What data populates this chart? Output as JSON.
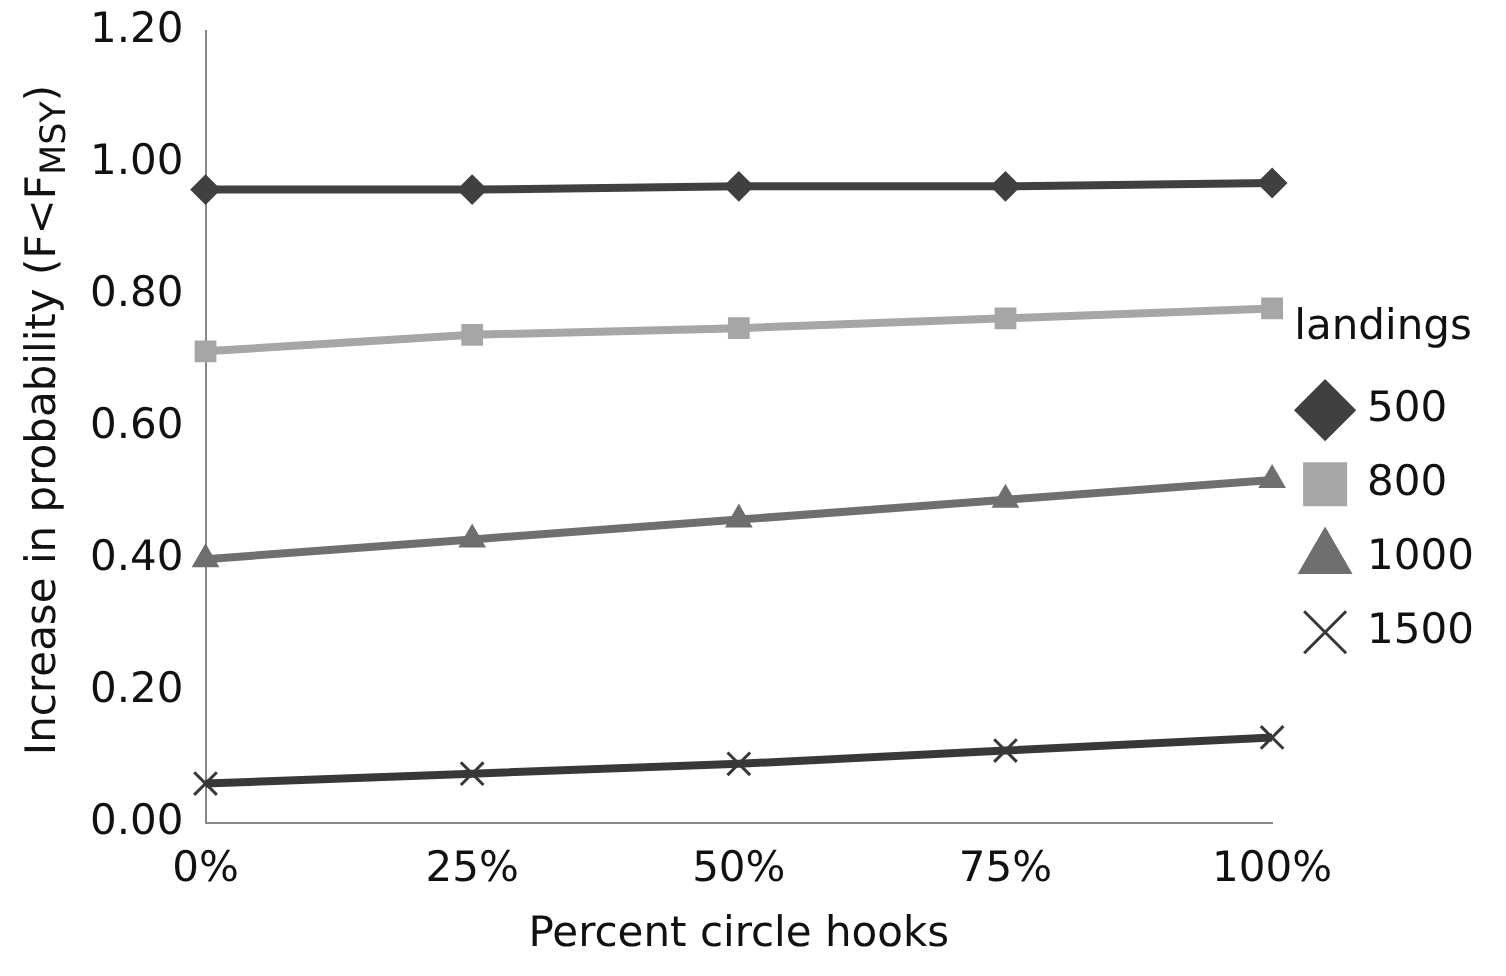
{
  "chart_data": {
    "type": "line",
    "xlabel": "Percent circle hooks",
    "ylabel": "Increase in probability (F<F$_{MSY}$)",
    "legend_title": "landings",
    "categories": [
      "0%",
      "25%",
      "50%",
      "75%",
      "100%"
    ],
    "series": [
      {
        "name": "500",
        "color": "#404040",
        "marker": "diamond",
        "values": [
          0.96,
          0.96,
          0.965,
          0.965,
          0.97
        ]
      },
      {
        "name": "800",
        "color": "#a6a6a6",
        "marker": "square",
        "values": [
          0.715,
          0.74,
          0.75,
          0.765,
          0.78
        ]
      },
      {
        "name": "1000",
        "color": "#6f6f6f",
        "marker": "triangle",
        "values": [
          0.4,
          0.43,
          0.46,
          0.49,
          0.52
        ]
      },
      {
        "name": "1500",
        "color": "#383838",
        "marker": "cross",
        "values": [
          0.06,
          0.075,
          0.09,
          0.11,
          0.13
        ]
      }
    ],
    "ylim": [
      0,
      1.2
    ],
    "yticks": [
      {
        "value": 0,
        "label": "0.00"
      },
      {
        "value": 0.2,
        "label": "0.20"
      },
      {
        "value": 0.4,
        "label": "0.40"
      },
      {
        "value": 0.6,
        "label": "0.60"
      },
      {
        "value": 0.8,
        "label": "0.80"
      },
      {
        "value": 1.0,
        "label": "1.00"
      },
      {
        "value": 1.2,
        "label": "1.20"
      }
    ],
    "grid": false,
    "legend": "right"
  }
}
